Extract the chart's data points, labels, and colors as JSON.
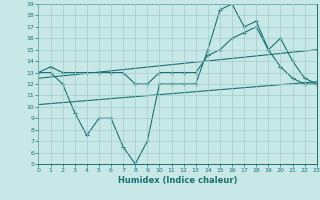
{
  "xlabel": "Humidex (Indice chaleur)",
  "background_color": "#c8e8e8",
  "line_color": "#1a7070",
  "grid_color": "#a0cccc",
  "xmin": 0,
  "xmax": 23,
  "ymin": 5,
  "ymax": 19,
  "line1_x": [
    0,
    1,
    2,
    3,
    4,
    5,
    6,
    7,
    8,
    9,
    10,
    11,
    12,
    13,
    14,
    15,
    16,
    17,
    18,
    19,
    20,
    21,
    22,
    23
  ],
  "line1_y": [
    13,
    13,
    12,
    9.5,
    7.5,
    9,
    9,
    6.5,
    5,
    7,
    12,
    12,
    12,
    12,
    15,
    18.5,
    19,
    17,
    17.5,
    15,
    13.5,
    12.5,
    12,
    12
  ],
  "line2_x": [
    0,
    1,
    2,
    3,
    4,
    5,
    6,
    7,
    8,
    9,
    10,
    11,
    12,
    13,
    14,
    15,
    16,
    17,
    18,
    19,
    20,
    21,
    22,
    23
  ],
  "line2_y": [
    13,
    13.5,
    13,
    13,
    13,
    13,
    13,
    13,
    12,
    12,
    13,
    13,
    13,
    13,
    14.5,
    15,
    16,
    16.5,
    17,
    15,
    16,
    14,
    12.5,
    12
  ],
  "line3_x": [
    0,
    23
  ],
  "line3_y": [
    10.2,
    12.2
  ],
  "line4_x": [
    0,
    23
  ],
  "line4_y": [
    12.5,
    15.0
  ]
}
